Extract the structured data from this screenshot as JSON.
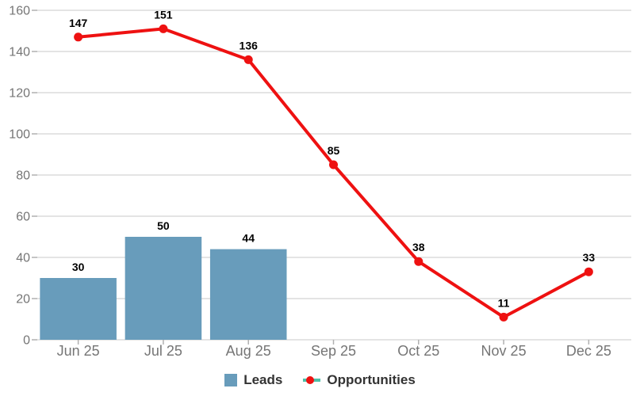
{
  "chart_data": {
    "type": "combo",
    "title": "",
    "categories": [
      "Jun 25",
      "Jul 25",
      "Aug 25",
      "Sep 25",
      "Oct 25",
      "Nov 25",
      "Dec 25"
    ],
    "series": [
      {
        "name": "Leads",
        "type": "bar",
        "values": [
          30,
          50,
          44,
          null,
          null,
          null,
          null
        ],
        "color": "#689cbb"
      },
      {
        "name": "Opportunities",
        "type": "line",
        "values": [
          147,
          151,
          136,
          85,
          38,
          11,
          33
        ],
        "color": "#ee1111"
      }
    ],
    "ylim": [
      0,
      160
    ],
    "ytick_step": 20,
    "yticks": [
      0,
      20,
      40,
      60,
      80,
      100,
      120,
      140,
      160
    ],
    "grid": true,
    "data_labels": true,
    "legend_position": "bottom"
  },
  "legend": {
    "items": [
      {
        "label": "Leads",
        "swatch": "square",
        "color": "#689cbb"
      },
      {
        "label": "Opportunities",
        "swatch": "line-dot",
        "line_color": "#4ec0a8",
        "dot_color": "#ee1111"
      }
    ]
  },
  "style": {
    "background": "#ffffff",
    "grid_color": "#c9c9c9",
    "tick_color": "#b0b0b0",
    "axis_label_color": "#757575",
    "data_label_color": "#000000",
    "legend_text_color": "#333333"
  }
}
